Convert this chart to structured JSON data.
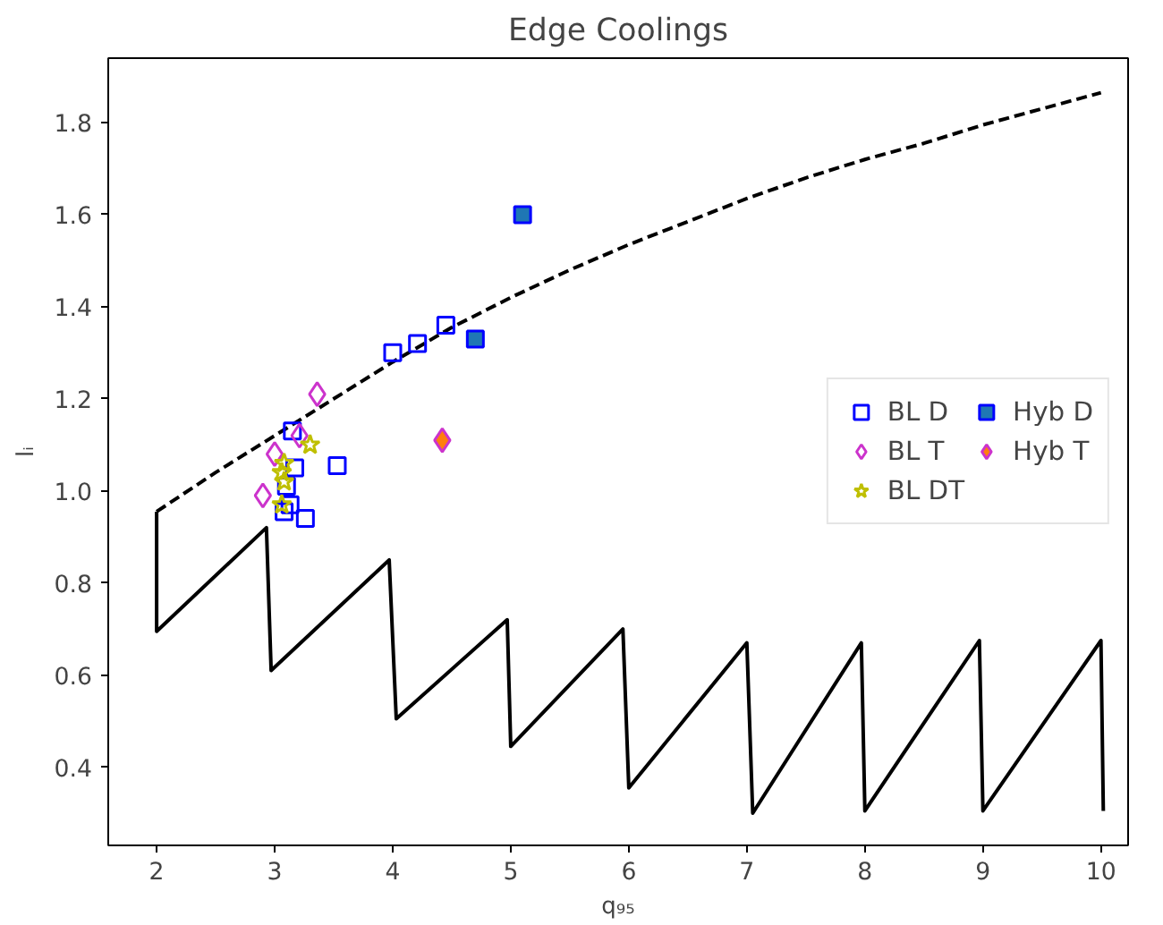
{
  "chart_data": {
    "type": "scatter",
    "title": "Edge Coolings",
    "xlabel": "q₉₅",
    "ylabel": "lᵢ",
    "xlim": [
      1.59,
      10.23
    ],
    "ylim": [
      0.23,
      1.94
    ],
    "xticks": [
      2,
      3,
      4,
      5,
      6,
      7,
      8,
      9,
      10
    ],
    "yticks": [
      {
        "value": 0.4,
        "label": "0.4"
      },
      {
        "value": 0.6,
        "label": "0.6"
      },
      {
        "value": 0.8,
        "label": "0.8"
      },
      {
        "value": 1.0,
        "label": "1.0"
      },
      {
        "value": 1.2,
        "label": "1.2"
      },
      {
        "value": 1.4,
        "label": "1.4"
      },
      {
        "value": 1.6,
        "label": "1.6"
      },
      {
        "value": 1.8,
        "label": "1.8"
      }
    ],
    "grid": false,
    "legend": "right",
    "series": [
      {
        "type": "line",
        "line_style": "dashed",
        "marker": "none",
        "color": "#000000",
        "x": [
          2,
          2.5,
          3,
          3.5,
          4,
          4.5,
          5,
          5.5,
          6,
          6.5,
          7,
          7.5,
          8,
          8.5,
          9,
          9.5,
          10
        ],
        "values": [
          0.955,
          1.04,
          1.12,
          1.2,
          1.28,
          1.355,
          1.42,
          1.48,
          1.535,
          1.585,
          1.635,
          1.68,
          1.72,
          1.755,
          1.795,
          1.83,
          1.865
        ]
      },
      {
        "type": "line",
        "line_style": "solid",
        "marker": "none",
        "color": "#000000",
        "x": [
          2,
          2,
          2.93,
          2.97,
          3.97,
          4.03,
          4.97,
          5.0,
          5.95,
          6.0,
          7.0,
          7.05,
          7.97,
          8.0,
          8.97,
          9.0,
          10.0,
          10.02
        ],
        "values": [
          0.955,
          0.695,
          0.92,
          0.61,
          0.85,
          0.505,
          0.72,
          0.445,
          0.7,
          0.355,
          0.67,
          0.3,
          0.67,
          0.305,
          0.675,
          0.305,
          0.675,
          0.305
        ]
      },
      {
        "name": "BL D",
        "marker": "square",
        "color": "#0000ff",
        "x": [
          3.15,
          3.17,
          3.1,
          3.13,
          3.26,
          3.53,
          4.0,
          4.21,
          4.45,
          3.08
        ],
        "values": [
          1.13,
          1.05,
          1.01,
          0.97,
          0.94,
          1.055,
          1.3,
          1.32,
          1.36,
          0.955
        ]
      },
      {
        "name": "BL T",
        "marker": "diamond",
        "color": "#cc33cc",
        "x": [
          3.36,
          3.21,
          3.0,
          2.9
        ],
        "values": [
          1.21,
          1.12,
          1.08,
          0.99
        ]
      },
      {
        "name": "BL DT",
        "marker": "star",
        "color": "#bfbf00",
        "x": [
          3.3,
          3.08,
          3.06,
          3.08,
          3.06
        ],
        "values": [
          1.1,
          1.06,
          1.04,
          1.02,
          0.97
        ]
      },
      {
        "name": "Hyb D",
        "marker": "square",
        "color": "#1f77b4",
        "x": [
          5.1,
          4.7
        ],
        "values": [
          1.6,
          1.33
        ]
      },
      {
        "name": "Hyb T",
        "marker": "diamond",
        "color": "#ff7f0e",
        "x": [
          4.42
        ],
        "values": [
          1.11
        ]
      }
    ]
  }
}
